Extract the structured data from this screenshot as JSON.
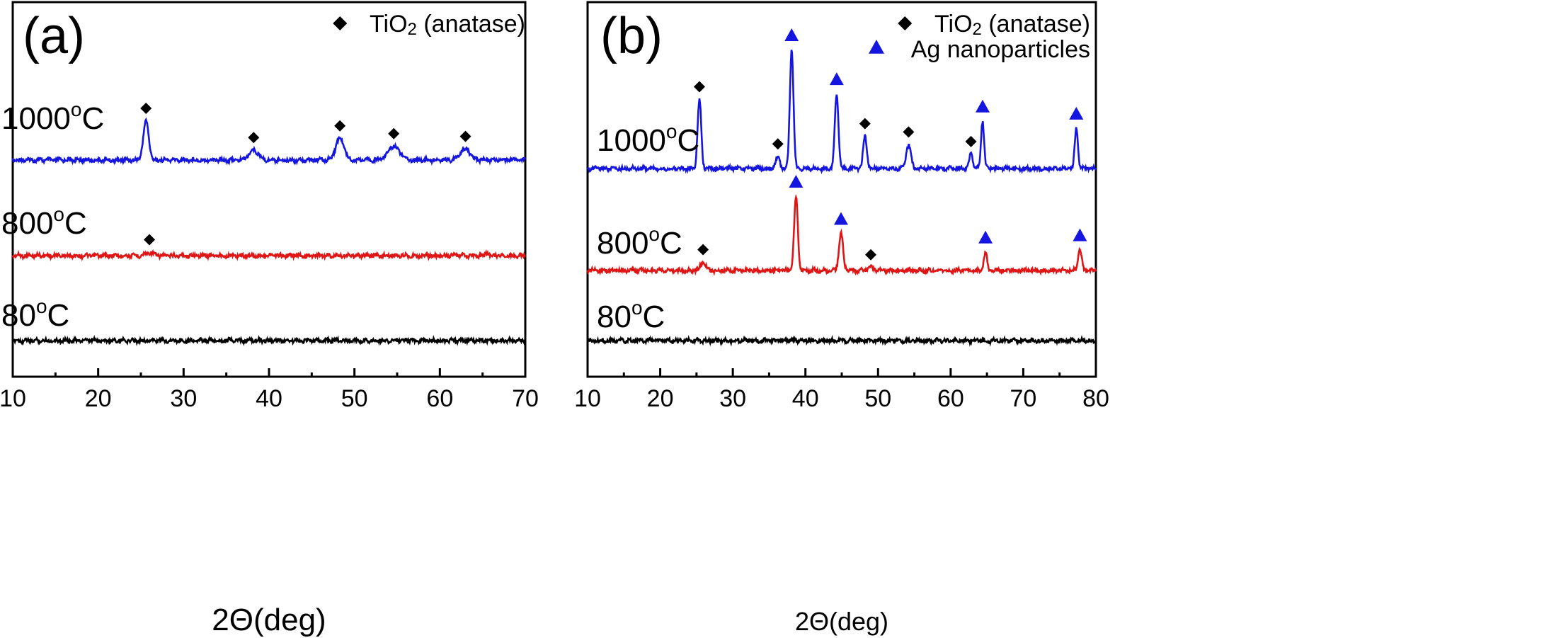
{
  "chart_data": [
    {
      "panel": "(a)",
      "type": "line",
      "xlabel": "2Θ(deg)",
      "ylabel": "",
      "xlim": [
        10,
        70
      ],
      "xticks": [
        "10",
        "20",
        "30",
        "40",
        "50",
        "60",
        "70"
      ],
      "legend": [
        {
          "marker": "diamond",
          "color": "#000000",
          "label_main": "TiO",
          "label_sub": "2",
          "label_rest": " (anatase)"
        }
      ],
      "legend_position": "top-right",
      "series": [
        {
          "name": "1000",
          "label_sup": "o",
          "label_unit": "C",
          "color": "#1515e0",
          "peaks": [
            {
              "x": 25.6,
              "h": 1.0,
              "w": 0.45,
              "marker": "diamond"
            },
            {
              "x": 38.2,
              "h": 0.25,
              "w": 0.8,
              "marker": "diamond"
            },
            {
              "x": 48.3,
              "h": 0.55,
              "w": 0.7,
              "marker": "diamond"
            },
            {
              "x": 54.6,
              "h": 0.35,
              "w": 1.0,
              "marker": "diamond"
            },
            {
              "x": 63.0,
              "h": 0.28,
              "w": 0.8,
              "marker": "diamond"
            }
          ]
        },
        {
          "name": "800",
          "label_sup": "o",
          "label_unit": "C",
          "color": "#e01515",
          "peaks": [
            {
              "x": 26.0,
              "h": 0.15,
              "w": 0.6,
              "marker": "diamond"
            },
            {
              "x": 65.5,
              "h": 0.12,
              "w": 0.3
            }
          ]
        },
        {
          "name": "80",
          "label_sup": "o",
          "label_unit": "C",
          "color": "#000000",
          "peaks": []
        }
      ]
    },
    {
      "panel": "(b)",
      "type": "line",
      "xlabel": "2Θ(deg)",
      "ylabel": "",
      "xlim": [
        10,
        80
      ],
      "xticks": [
        "10",
        "20",
        "30",
        "40",
        "50",
        "60",
        "70",
        "80"
      ],
      "legend": [
        {
          "marker": "diamond",
          "color": "#000000",
          "label_main": "TiO",
          "label_sub": "2",
          "label_rest": " (anatase)"
        },
        {
          "marker": "triangle",
          "color": "#1515e0",
          "label_main": "Ag nanoparticles",
          "label_sub": "",
          "label_rest": ""
        }
      ],
      "legend_position": "top-right",
      "series": [
        {
          "name": "1000",
          "label_sup": "o",
          "label_unit": "C",
          "color": "#1515e0",
          "peaks": [
            {
              "x": 25.4,
              "h": 0.58,
              "w": 0.35,
              "marker": "diamond"
            },
            {
              "x": 36.2,
              "h": 0.1,
              "w": 0.4,
              "marker": "diamond"
            },
            {
              "x": 38.1,
              "h": 1.0,
              "w": 0.35,
              "marker": "triangle"
            },
            {
              "x": 44.3,
              "h": 0.63,
              "w": 0.35,
              "marker": "triangle"
            },
            {
              "x": 48.2,
              "h": 0.27,
              "w": 0.35,
              "marker": "diamond"
            },
            {
              "x": 54.2,
              "h": 0.2,
              "w": 0.45,
              "marker": "diamond"
            },
            {
              "x": 62.8,
              "h": 0.12,
              "w": 0.35,
              "marker": "diamond"
            },
            {
              "x": 64.4,
              "h": 0.4,
              "w": 0.3,
              "marker": "triangle"
            },
            {
              "x": 77.3,
              "h": 0.34,
              "w": 0.3,
              "marker": "triangle"
            }
          ]
        },
        {
          "name": "800",
          "label_sup": "o",
          "label_unit": "C",
          "color": "#e01515",
          "peaks": [
            {
              "x": 25.9,
              "h": 0.11,
              "w": 0.5,
              "marker": "diamond"
            },
            {
              "x": 38.7,
              "h": 1.0,
              "w": 0.35,
              "marker": "triangle"
            },
            {
              "x": 44.9,
              "h": 0.5,
              "w": 0.4,
              "marker": "triangle"
            },
            {
              "x": 49.0,
              "h": 0.04,
              "w": 0.6,
              "marker": "diamond"
            },
            {
              "x": 64.8,
              "h": 0.25,
              "w": 0.3,
              "marker": "triangle"
            },
            {
              "x": 77.8,
              "h": 0.28,
              "w": 0.35,
              "marker": "triangle"
            }
          ]
        },
        {
          "name": "80",
          "label_sup": "o",
          "label_unit": "C",
          "color": "#000000",
          "peaks": []
        }
      ]
    }
  ]
}
